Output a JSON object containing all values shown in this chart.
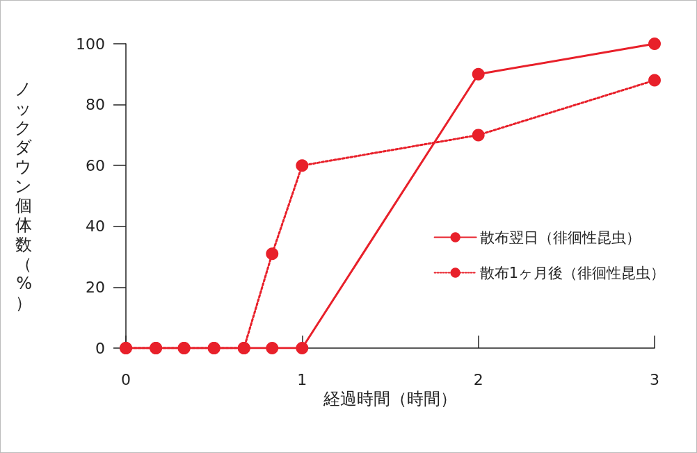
{
  "chart_data": {
    "type": "line",
    "xlabel": "経過時間（時間）",
    "ylabel": "ノックダウン個体数（%）",
    "x": [
      0,
      0.17,
      0.33,
      0.5,
      0.67,
      0.83,
      1,
      2,
      3
    ],
    "series": [
      {
        "name": "散布翌日（徘徊性昆虫）",
        "color": "#e8202a",
        "line_style": "solid",
        "values": [
          0,
          0,
          0,
          0,
          0,
          0,
          0,
          90,
          100
        ]
      },
      {
        "name": "散布1ヶ月後（徘徊性昆虫）",
        "color": "#e8202a",
        "line_style": "dotted",
        "values": [
          0,
          0,
          0,
          0,
          0,
          31,
          60,
          70,
          88
        ]
      }
    ],
    "xlim": [
      0,
      3
    ],
    "xticks": [
      0,
      1,
      2,
      3
    ],
    "ylim": [
      0,
      100
    ],
    "yticks": [
      0,
      20,
      40,
      60,
      80,
      100
    ],
    "marker": "circle",
    "grid": false,
    "legend": "right"
  }
}
